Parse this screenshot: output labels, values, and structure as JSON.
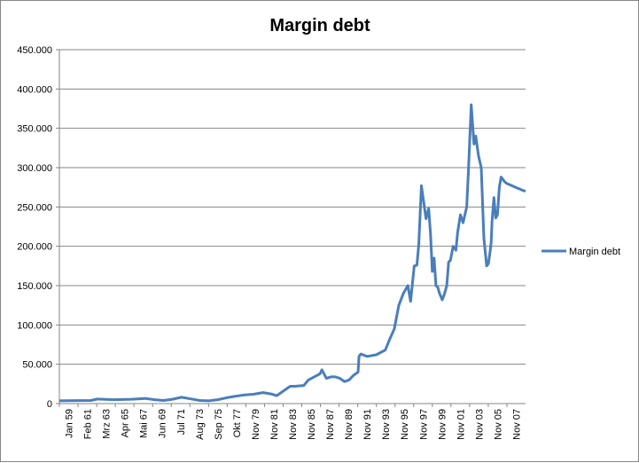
{
  "chart_data": {
    "type": "line",
    "title": "Margin debt",
    "xlabel": "",
    "ylabel": "",
    "ylim": [
      0,
      450000
    ],
    "y_ticks": [
      "0",
      "50.000",
      "100.000",
      "150.000",
      "200.000",
      "250.000",
      "300.000",
      "350.000",
      "400.000",
      "450.000"
    ],
    "x_ticks": [
      "Jan 59",
      "Feb 61",
      "Mrz 63",
      "Apr 65",
      "Mai 67",
      "Jun 69",
      "Jul 71",
      "Aug 73",
      "Sep 75",
      "Okt 77",
      "Nov 79",
      "Nov 81",
      "Nov 83",
      "Nov 85",
      "Nov 87",
      "Nov 89",
      "Nov 91",
      "Nov 93",
      "Nov 95",
      "Nov 97",
      "Nov 99",
      "Nov 01",
      "Nov 03",
      "Nov 05",
      "Nov 07"
    ],
    "grid": true,
    "legend_position": "right",
    "colors": {
      "series": "#4a7ebb",
      "grid": "#868686"
    },
    "series": [
      {
        "name": "Margin debt",
        "x": [
          1959.0,
          1961.0,
          1962.5,
          1963.2,
          1965.0,
          1967.0,
          1968.5,
          1969.5,
          1970.5,
          1971.5,
          1972.5,
          1973.5,
          1974.5,
          1975.5,
          1976.5,
          1977.5,
          1978.5,
          1979.5,
          1980.5,
          1981.5,
          1982.5,
          1983.0,
          1983.5,
          1984.5,
          1985.0,
          1986.0,
          1986.5,
          1987.5,
          1987.8,
          1988.0,
          1988.5,
          1989.0,
          1989.5,
          1990.0,
          1990.5,
          1991.0,
          1991.5,
          1992.0,
          1992.1,
          1992.3,
          1993.0,
          1994.0,
          1995.0,
          1995.5,
          1996.0,
          1996.5,
          1997.0,
          1997.5,
          1997.8,
          1998.2,
          1998.5,
          1998.7,
          1999.0,
          1999.5,
          1999.8,
          2000.0,
          2000.2,
          2000.4,
          2000.6,
          2000.8,
          2001.0,
          2001.3,
          2001.5,
          2001.8,
          2002.0,
          2002.2,
          2002.5,
          2002.8,
          2003.0,
          2003.3,
          2003.6,
          2004.0,
          2004.2,
          2004.5,
          2004.8,
          2005.0,
          2005.3,
          2005.6,
          2005.9,
          2006.2,
          2006.4,
          2006.6,
          2006.7,
          2006.8,
          2007.0,
          2007.2,
          2007.4,
          2007.6,
          2007.8,
          2008.0,
          2008.2,
          2008.4,
          2008.6,
          2008.8,
          2009.0,
          2009.2,
          2009.4,
          2009.6,
          2009.8,
          2010.0,
          2010.2,
          2010.5
        ],
        "values": [
          3500,
          3800,
          4000,
          5800,
          5000,
          5500,
          6500,
          5000,
          4000,
          5500,
          8000,
          6000,
          4000,
          3500,
          5000,
          7500,
          9500,
          11000,
          12000,
          14000,
          12000,
          10000,
          14000,
          22000,
          22000,
          23000,
          30000,
          36000,
          38000,
          43000,
          32000,
          34000,
          34000,
          32000,
          28000,
          30000,
          36000,
          40000,
          60000,
          63000,
          60000,
          62000,
          68000,
          82000,
          95000,
          125000,
          140000,
          150000,
          130000,
          175000,
          176000,
          202000,
          277000,
          235000,
          248000,
          215000,
          168000,
          185000,
          150000,
          148000,
          140000,
          132000,
          138000,
          150000,
          180000,
          182000,
          200000,
          195000,
          218000,
          240000,
          230000,
          250000,
          300000,
          380000,
          330000,
          340000,
          315000,
          300000,
          210000,
          175000,
          178000,
          195000,
          205000,
          232000,
          262000,
          236000,
          240000,
          275000,
          288000,
          285000,
          282000,
          280000,
          279000,
          278000,
          277000,
          276000,
          275000,
          274000,
          273000,
          272000,
          271000,
          270000
        ]
      }
    ]
  }
}
